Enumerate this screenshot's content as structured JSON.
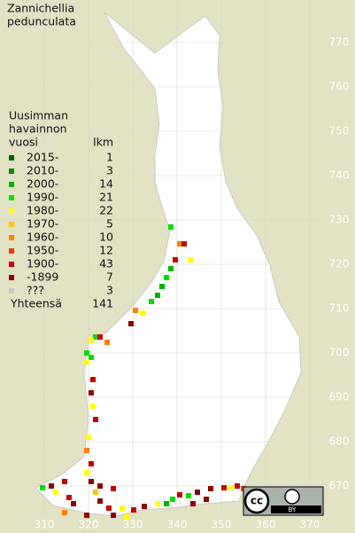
{
  "title": [
    "Zannichellia",
    "pedunculata"
  ],
  "legend": {
    "header": [
      "Uusimman",
      "havainnon",
      "vuosi"
    ],
    "count_header": "lkm",
    "rows": [
      {
        "label": "2015-",
        "count": "1",
        "color": "#006400"
      },
      {
        "label": "2010-",
        "count": "3",
        "color": "#008a00"
      },
      {
        "label": "2000-",
        "count": "14",
        "color": "#00b400"
      },
      {
        "label": "1990-",
        "count": "21",
        "color": "#00e000"
      },
      {
        "label": "1980-",
        "count": "22",
        "color": "#ffff00"
      },
      {
        "label": "1970-",
        "count": "5",
        "color": "#ffc800"
      },
      {
        "label": "1960-",
        "count": "10",
        "color": "#ff8000"
      },
      {
        "label": "1950-",
        "count": "12",
        "color": "#f03c00"
      },
      {
        "label": "1900-",
        "count": "43",
        "color": "#c80000"
      },
      {
        "label": "-1899",
        "count": "7",
        "color": "#8c0000"
      },
      {
        "label": "???",
        "count": "3",
        "color": "#c8c8c8"
      }
    ],
    "total_label": "Yhteensä",
    "total": "141"
  },
  "x_ticks": [
    310,
    320,
    330,
    340,
    350,
    360,
    370
  ],
  "y_ticks": [
    770,
    760,
    750,
    740,
    730,
    720,
    710,
    700,
    690,
    680,
    670
  ],
  "license": {
    "cc": "cc",
    "by": "BY"
  }
}
